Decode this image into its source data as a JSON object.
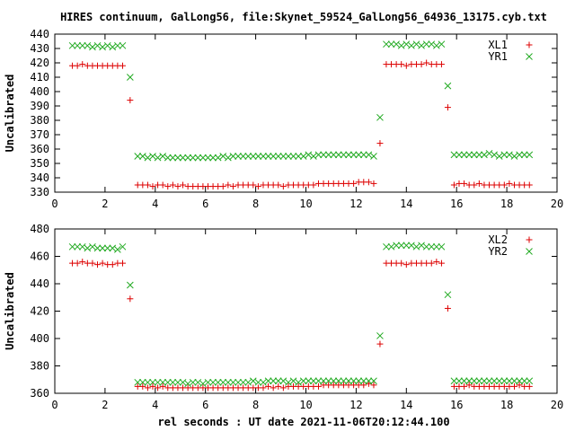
{
  "figure": {
    "title": "HIRES continuum, GalLong56, file:Skynet_59524_GalLong56_64936_13175.cyb.txt",
    "xlabel": "rel seconds : UT date 2021-11-06T20:12:44.100"
  },
  "colors": {
    "red": "#dd0000",
    "green": "#22aa22"
  },
  "chart_data": [
    {
      "type": "scatter",
      "title": "HIRES continuum, GalLong56, file:Skynet_59524_GalLong56_64936_13175.cyb.txt",
      "xlabel": "",
      "ylabel": "Uncalibrated",
      "xlim": [
        0,
        20
      ],
      "ylim": [
        330,
        440
      ],
      "xticks": [
        0,
        2,
        4,
        6,
        8,
        10,
        12,
        14,
        16,
        18,
        20
      ],
      "yticks": [
        330,
        340,
        350,
        360,
        370,
        380,
        390,
        400,
        410,
        420,
        430,
        440
      ],
      "grid": false,
      "legend": "top-right",
      "series": [
        {
          "name": "XL1",
          "marker": "+",
          "color": "#dd0000",
          "x": [
            0.7,
            0.9,
            1.1,
            1.3,
            1.5,
            1.7,
            1.9,
            2.1,
            2.3,
            2.5,
            2.7,
            3.0,
            3.3,
            3.5,
            3.7,
            3.9,
            4.1,
            4.3,
            4.5,
            4.7,
            4.9,
            5.1,
            5.3,
            5.5,
            5.7,
            5.9,
            6.1,
            6.3,
            6.5,
            6.7,
            6.9,
            7.1,
            7.3,
            7.5,
            7.7,
            7.9,
            8.1,
            8.3,
            8.5,
            8.7,
            8.9,
            9.1,
            9.3,
            9.5,
            9.7,
            9.9,
            10.1,
            10.3,
            10.5,
            10.7,
            10.9,
            11.1,
            11.3,
            11.5,
            11.7,
            11.9,
            12.1,
            12.3,
            12.5,
            12.7,
            12.95,
            13.2,
            13.4,
            13.6,
            13.8,
            14.0,
            14.2,
            14.4,
            14.6,
            14.8,
            15.0,
            15.2,
            15.4,
            15.65,
            15.9,
            16.1,
            16.3,
            16.5,
            16.7,
            16.9,
            17.1,
            17.3,
            17.5,
            17.7,
            17.9,
            18.1,
            18.3,
            18.5,
            18.7,
            18.9
          ],
          "y": [
            418,
            418,
            419,
            418,
            418,
            418,
            418,
            418,
            418,
            418,
            418,
            394,
            335,
            335,
            335,
            334,
            335,
            335,
            334,
            335,
            334,
            335,
            334,
            334,
            334,
            334,
            334,
            334,
            334,
            334,
            335,
            334,
            335,
            335,
            335,
            335,
            334,
            335,
            335,
            335,
            335,
            334,
            335,
            335,
            335,
            335,
            335,
            335,
            336,
            336,
            336,
            336,
            336,
            336,
            336,
            336,
            337,
            337,
            337,
            336,
            364,
            419,
            419,
            419,
            419,
            418,
            419,
            419,
            419,
            420,
            419,
            419,
            419,
            389,
            335,
            336,
            336,
            335,
            335,
            336,
            335,
            335,
            335,
            335,
            335,
            336,
            335,
            335,
            335,
            335
          ]
        },
        {
          "name": "YR1",
          "marker": "x",
          "color": "#22aa22",
          "x": [
            0.7,
            0.9,
            1.1,
            1.3,
            1.5,
            1.7,
            1.9,
            2.1,
            2.3,
            2.5,
            2.7,
            3.0,
            3.3,
            3.5,
            3.7,
            3.9,
            4.1,
            4.3,
            4.5,
            4.7,
            4.9,
            5.1,
            5.3,
            5.5,
            5.7,
            5.9,
            6.1,
            6.3,
            6.5,
            6.7,
            6.9,
            7.1,
            7.3,
            7.5,
            7.7,
            7.9,
            8.1,
            8.3,
            8.5,
            8.7,
            8.9,
            9.1,
            9.3,
            9.5,
            9.7,
            9.9,
            10.1,
            10.3,
            10.5,
            10.7,
            10.9,
            11.1,
            11.3,
            11.5,
            11.7,
            11.9,
            12.1,
            12.3,
            12.5,
            12.7,
            12.95,
            13.2,
            13.4,
            13.6,
            13.8,
            14.0,
            14.2,
            14.4,
            14.6,
            14.8,
            15.0,
            15.2,
            15.4,
            15.65,
            15.9,
            16.1,
            16.3,
            16.5,
            16.7,
            16.9,
            17.1,
            17.3,
            17.5,
            17.7,
            17.9,
            18.1,
            18.3,
            18.5,
            18.7,
            18.9
          ],
          "y": [
            432,
            432,
            432,
            432,
            431,
            432,
            431,
            432,
            431,
            432,
            432,
            410,
            355,
            355,
            354,
            355,
            354,
            355,
            354,
            354,
            354,
            354,
            354,
            354,
            354,
            354,
            354,
            354,
            354,
            355,
            354,
            355,
            355,
            355,
            355,
            355,
            355,
            355,
            355,
            355,
            355,
            355,
            355,
            355,
            355,
            355,
            356,
            355,
            356,
            356,
            356,
            356,
            356,
            356,
            356,
            356,
            356,
            356,
            356,
            355,
            382,
            433,
            433,
            433,
            432,
            433,
            432,
            433,
            432,
            433,
            433,
            432,
            433,
            404,
            356,
            356,
            356,
            356,
            356,
            356,
            356,
            357,
            356,
            355,
            356,
            356,
            355,
            356,
            356,
            356
          ]
        }
      ]
    },
    {
      "type": "scatter",
      "title": "",
      "xlabel": "rel seconds : UT date 2021-11-06T20:12:44.100",
      "ylabel": "Uncalibrated",
      "xlim": [
        0,
        20
      ],
      "ylim": [
        360,
        480
      ],
      "xticks": [
        0,
        2,
        4,
        6,
        8,
        10,
        12,
        14,
        16,
        18,
        20
      ],
      "yticks": [
        360,
        380,
        400,
        420,
        440,
        460,
        480
      ],
      "grid": false,
      "legend": "top-right",
      "series": [
        {
          "name": "XL2",
          "marker": "+",
          "color": "#dd0000",
          "x": [
            0.7,
            0.9,
            1.1,
            1.3,
            1.5,
            1.7,
            1.9,
            2.1,
            2.3,
            2.5,
            2.7,
            3.0,
            3.3,
            3.5,
            3.7,
            3.9,
            4.1,
            4.3,
            4.5,
            4.7,
            4.9,
            5.1,
            5.3,
            5.5,
            5.7,
            5.9,
            6.1,
            6.3,
            6.5,
            6.7,
            6.9,
            7.1,
            7.3,
            7.5,
            7.7,
            7.9,
            8.1,
            8.3,
            8.5,
            8.7,
            8.9,
            9.1,
            9.3,
            9.5,
            9.7,
            9.9,
            10.1,
            10.3,
            10.5,
            10.7,
            10.9,
            11.1,
            11.3,
            11.5,
            11.7,
            11.9,
            12.1,
            12.3,
            12.5,
            12.7,
            12.95,
            13.2,
            13.4,
            13.6,
            13.8,
            14.0,
            14.2,
            14.4,
            14.6,
            14.8,
            15.0,
            15.2,
            15.4,
            15.65,
            15.9,
            16.1,
            16.3,
            16.5,
            16.7,
            16.9,
            17.1,
            17.3,
            17.5,
            17.7,
            17.9,
            18.1,
            18.3,
            18.5,
            18.7,
            18.9
          ],
          "y": [
            455,
            455,
            456,
            455,
            455,
            454,
            455,
            454,
            454,
            455,
            455,
            429,
            365,
            365,
            364,
            365,
            364,
            365,
            364,
            364,
            364,
            364,
            364,
            364,
            364,
            364,
            364,
            364,
            364,
            364,
            364,
            364,
            364,
            364,
            364,
            364,
            364,
            364,
            365,
            364,
            365,
            364,
            365,
            365,
            365,
            365,
            365,
            365,
            365,
            366,
            366,
            366,
            366,
            366,
            366,
            366,
            366,
            366,
            367,
            366,
            396,
            455,
            455,
            455,
            455,
            454,
            455,
            455,
            455,
            455,
            455,
            456,
            455,
            422,
            365,
            365,
            365,
            366,
            365,
            365,
            365,
            365,
            365,
            365,
            365,
            365,
            365,
            366,
            365,
            365
          ]
        },
        {
          "name": "YR2",
          "marker": "x",
          "color": "#22aa22",
          "x": [
            0.7,
            0.9,
            1.1,
            1.3,
            1.5,
            1.7,
            1.9,
            2.1,
            2.3,
            2.5,
            2.7,
            3.0,
            3.3,
            3.5,
            3.7,
            3.9,
            4.1,
            4.3,
            4.5,
            4.7,
            4.9,
            5.1,
            5.3,
            5.5,
            5.7,
            5.9,
            6.1,
            6.3,
            6.5,
            6.7,
            6.9,
            7.1,
            7.3,
            7.5,
            7.7,
            7.9,
            8.1,
            8.3,
            8.5,
            8.7,
            8.9,
            9.1,
            9.3,
            9.5,
            9.7,
            9.9,
            10.1,
            10.3,
            10.5,
            10.7,
            10.9,
            11.1,
            11.3,
            11.5,
            11.7,
            11.9,
            12.1,
            12.3,
            12.5,
            12.7,
            12.95,
            13.2,
            13.4,
            13.6,
            13.8,
            14.0,
            14.2,
            14.4,
            14.6,
            14.8,
            15.0,
            15.2,
            15.4,
            15.65,
            15.9,
            16.1,
            16.3,
            16.5,
            16.7,
            16.9,
            17.1,
            17.3,
            17.5,
            17.7,
            17.9,
            18.1,
            18.3,
            18.5,
            18.7,
            18.9
          ],
          "y": [
            467,
            467,
            467,
            466,
            467,
            466,
            466,
            466,
            466,
            465,
            467,
            439,
            368,
            368,
            368,
            368,
            368,
            368,
            368,
            368,
            368,
            368,
            367,
            368,
            368,
            367,
            368,
            368,
            368,
            368,
            368,
            368,
            368,
            368,
            368,
            369,
            368,
            368,
            369,
            369,
            369,
            369,
            368,
            369,
            368,
            369,
            369,
            369,
            369,
            369,
            369,
            369,
            369,
            369,
            369,
            369,
            369,
            369,
            369,
            369,
            402,
            467,
            467,
            468,
            468,
            468,
            468,
            467,
            468,
            467,
            467,
            467,
            467,
            432,
            369,
            369,
            369,
            369,
            369,
            369,
            369,
            369,
            369,
            369,
            369,
            369,
            369,
            369,
            369,
            369
          ]
        }
      ]
    }
  ]
}
